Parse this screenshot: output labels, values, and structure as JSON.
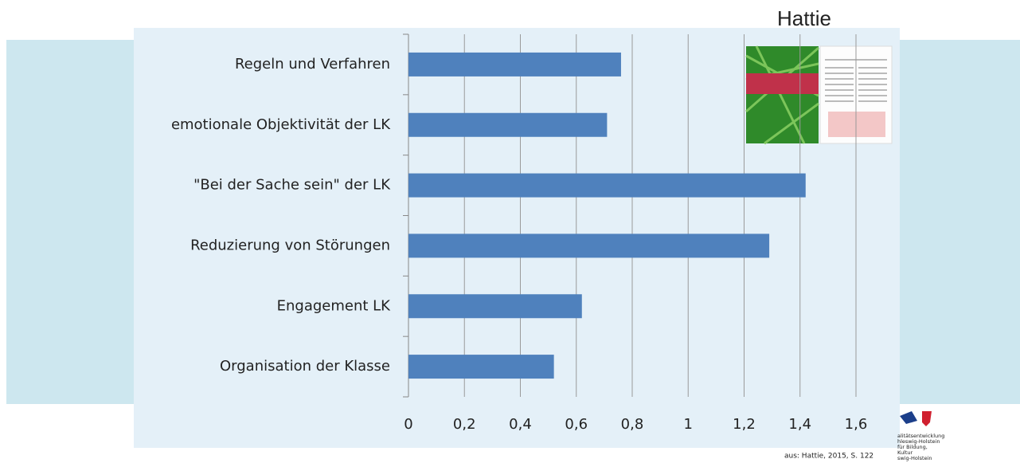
{
  "chart_data": {
    "type": "bar",
    "orientation": "horizontal",
    "title": "Hattie",
    "categories": [
      "Regeln und Verfahren",
      "emotionale Objektivität der LK",
      "\"Bei der Sache sein\" der LK",
      "Reduzierung von Störungen",
      "Engagement LK",
      "Organisation der Klasse"
    ],
    "values": [
      0.76,
      0.71,
      1.42,
      1.29,
      0.62,
      0.52
    ],
    "color": "#4f81bd",
    "xlim": [
      0,
      1.6
    ],
    "xticks": [
      0,
      {
        "value": 0.2,
        "label": "0,2"
      },
      {
        "value": 0.4,
        "label": "0,4"
      },
      {
        "value": 0.6,
        "label": "0,6"
      },
      {
        "value": 0.8,
        "label": "0,8"
      },
      1,
      {
        "value": 1.2,
        "label": "1,2"
      },
      {
        "value": 1.4,
        "label": "1,4"
      },
      {
        "value": 1.6,
        "label": "1,6"
      }
    ],
    "grid": true
  },
  "source": "aus: Hattie, 2015, S. 122",
  "logo": {
    "lines": [
      "alitätsentwicklung",
      "hleswig-Holstein",
      "für Bildung,",
      "Kultur",
      "swig-Holstein"
    ]
  }
}
